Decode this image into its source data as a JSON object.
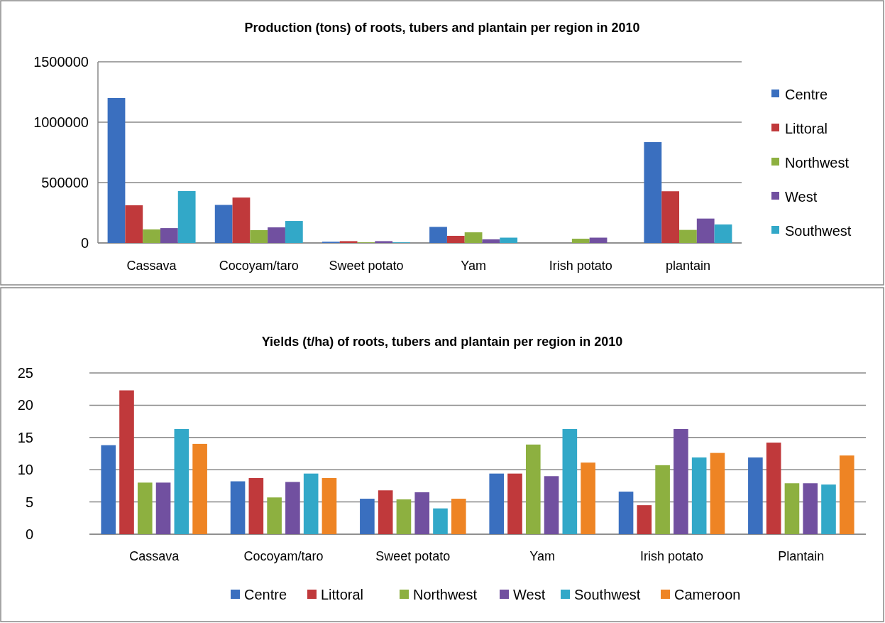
{
  "chart_data": [
    {
      "type": "bar",
      "title": "Production (tons) of roots, tubers and plantain per region in 2010",
      "categories": [
        "Cassava",
        "Cocoyam/taro",
        "Sweet potato",
        "Yam",
        "Irish potato",
        "plantain"
      ],
      "series": [
        {
          "name": "Centre",
          "color": "#3a6fbf",
          "values": [
            1200000,
            315000,
            10000,
            133000,
            0,
            835000
          ]
        },
        {
          "name": "Littoral",
          "color": "#c0393b",
          "values": [
            312000,
            376000,
            15000,
            59000,
            0,
            428000
          ]
        },
        {
          "name": "Northwest",
          "color": "#8db040",
          "values": [
            112000,
            106000,
            5000,
            88000,
            35000,
            108000
          ]
        },
        {
          "name": "West",
          "color": "#7150a0",
          "values": [
            123000,
            129000,
            15000,
            30000,
            44000,
            202000
          ]
        },
        {
          "name": "Southwest",
          "color": "#32a8c8",
          "values": [
            430000,
            182000,
            5000,
            44000,
            0,
            153000
          ]
        }
      ],
      "ylim": [
        0,
        1500000
      ],
      "yticks": [
        0,
        500000,
        1000000,
        1500000
      ],
      "grid": "y",
      "legend": "right"
    },
    {
      "type": "bar",
      "title": "Yields (t/ha) of roots, tubers and plantain per region in 2010",
      "categories": [
        "Cassava",
        "Cocoyam/taro",
        "Sweet potato",
        "Yam",
        "Irish potato",
        "Plantain"
      ],
      "series": [
        {
          "name": "Centre",
          "color": "#3a6fbf",
          "values": [
            13.8,
            8.2,
            5.5,
            9.4,
            6.6,
            11.9
          ]
        },
        {
          "name": "Littoral",
          "color": "#c0393b",
          "values": [
            22.3,
            8.7,
            6.8,
            9.4,
            4.5,
            14.2
          ]
        },
        {
          "name": "Northwest",
          "color": "#8db040",
          "values": [
            8.0,
            5.7,
            5.4,
            13.9,
            10.7,
            7.9
          ]
        },
        {
          "name": "West",
          "color": "#7150a0",
          "values": [
            8.0,
            8.1,
            6.5,
            9.0,
            16.3,
            7.9
          ]
        },
        {
          "name": "Southwest",
          "color": "#32a8c8",
          "values": [
            16.3,
            9.4,
            4.0,
            16.3,
            11.9,
            7.7
          ]
        },
        {
          "name": "Cameroon",
          "color": "#ee8424",
          "values": [
            14.0,
            8.7,
            5.5,
            11.1,
            12.6,
            12.2
          ]
        }
      ],
      "ylim": [
        0,
        25
      ],
      "yticks": [
        0,
        5,
        10,
        15,
        20,
        25
      ],
      "grid": "y",
      "legend": "bottom"
    }
  ]
}
